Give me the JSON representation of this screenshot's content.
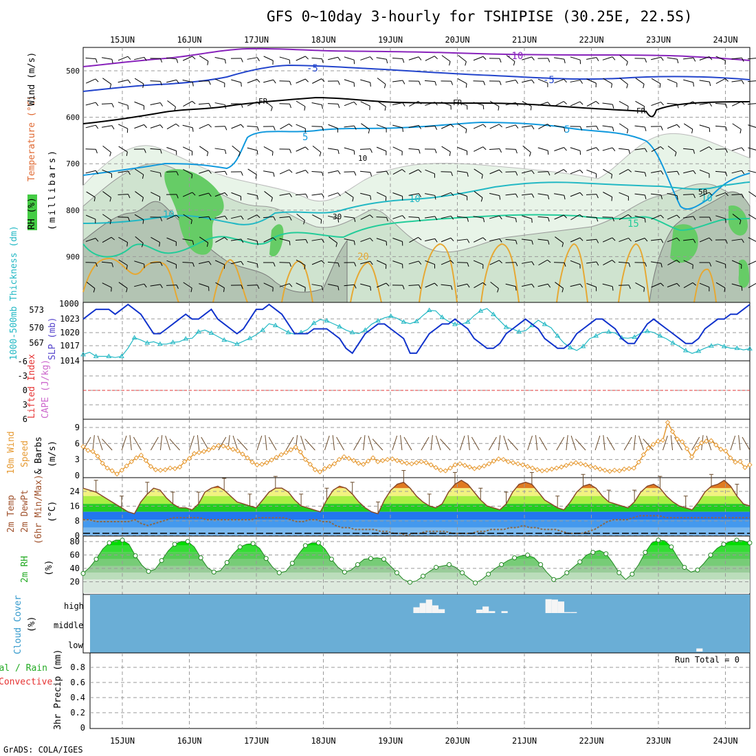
{
  "title": "GFS 0~10day 3-hourly for TSHIPISE (30.25E, 22.5S)",
  "footer": "GrADS: COLA/IGES",
  "colors": {
    "temp_line": "#3333cc",
    "thickness": "#22b8c4",
    "slp": "#1133cc",
    "wind10": "#e69a33",
    "rh_fill": "#33cc33",
    "cloud_bg": "#6aaed6",
    "lifted": "#e63333",
    "cape": "#cc66cc",
    "dewpt": "#8a6a4a",
    "freeze": "#000000"
  },
  "x_axis": {
    "labels": [
      "15JUN",
      "16JUN",
      "17JUN",
      "18JUN",
      "19JUN",
      "20JUN",
      "21JUN",
      "22JUN",
      "23JUN",
      "24JUN"
    ]
  },
  "panels": {
    "upper_air": {
      "ylabel_rh": "RH (%)",
      "ylabel_temp": "Temperature (°C)",
      "ylabel_wind": "Wind (m/s)",
      "ylabel_units": "(millibars)",
      "levels": [
        "500",
        "600",
        "700",
        "800",
        "900",
        "1000"
      ],
      "freeze_label": "FR",
      "rh_labels": [
        "10",
        "30",
        "50"
      ],
      "temp_labels": [
        "-10",
        "-5",
        "5",
        "10",
        "15",
        "20"
      ]
    },
    "slp_thickness": {
      "ylabel_left": "1000-500mb Thickness (dm)",
      "ylabel_right": "SLP (mb)",
      "thickness_ticks": [
        "573",
        "570",
        "567"
      ],
      "slp_ticks": [
        "1023",
        "1020",
        "1017",
        "1014"
      ],
      "top_label": "1000"
    },
    "stability": {
      "ylabel_left": "Lifted Index",
      "ylabel_right": "CAPE (J/kg)",
      "ticks": [
        "-6",
        "-3",
        "0",
        "3",
        "6"
      ]
    },
    "wind10m": {
      "ylabel_1": "10m Wind",
      "ylabel_2": "Speed",
      "ylabel_3": "& Barbs",
      "ylabel_units": "(m/s)",
      "ticks": [
        "9",
        "6",
        "3",
        "0"
      ]
    },
    "temp2m": {
      "ylabel_1": "2m Temp",
      "ylabel_2": "2m DewPt",
      "ylabel_3": "(6hr Min/Max)",
      "ylabel_units": "(°C)",
      "ticks": [
        "24",
        "16",
        "8",
        "0"
      ]
    },
    "rh2m": {
      "ylabel": "2m RH",
      "ylabel_units": "(%)",
      "ticks": [
        "80",
        "60",
        "40",
        "20"
      ]
    },
    "cloud": {
      "ylabel": "Cloud Cover",
      "ylabel_units": "(%)",
      "levels": [
        "high",
        "middle",
        "low"
      ]
    },
    "precip": {
      "ylabel_1": "Total / Rain",
      "ylabel_2": "Convective",
      "ylabel_units": "3hr Precip (mm)",
      "ticks": [
        "0.8",
        "0.6",
        "0.4",
        "0.2",
        "0"
      ],
      "run_total": "Run Total = 0"
    }
  },
  "chart_data": [
    {
      "type": "line",
      "name": "slp_thickness",
      "x_step_hours": 3,
      "series": [
        {
          "name": "SLP (mb)",
          "values": [
            1022,
            1023,
            1024,
            1024,
            1024,
            1023,
            1024,
            1025,
            1024,
            1023,
            1021,
            1019,
            1019,
            1020,
            1021,
            1022,
            1023,
            1022,
            1022,
            1023,
            1024,
            1022,
            1021,
            1020,
            1019,
            1020,
            1022,
            1024,
            1024,
            1025,
            1024,
            1023,
            1021,
            1019,
            1019,
            1019,
            1020,
            1020,
            1020,
            1019,
            1018,
            1016,
            1015,
            1017,
            1019,
            1020,
            1021,
            1021,
            1020,
            1019,
            1018,
            1015,
            1015,
            1017,
            1019,
            1020,
            1021,
            1021,
            1022,
            1021,
            1020,
            1018,
            1017,
            1016,
            1016,
            1017,
            1019,
            1020,
            1021,
            1022,
            1021,
            1020,
            1018,
            1017,
            1016,
            1016,
            1017,
            1019,
            1020,
            1021,
            1022,
            1022,
            1021,
            1020,
            1018,
            1017,
            1017,
            1019,
            1021,
            1022,
            1021,
            1020,
            1019,
            1018,
            1017,
            1017,
            1018,
            1020,
            1021,
            1022,
            1022,
            1023,
            1023,
            1024,
            1025
          ]
        },
        {
          "name": "Thickness (dm)",
          "values": [
            565.6,
            566.0,
            565.3,
            565.3,
            565.3,
            565.1,
            565.3,
            566.7,
            568.5,
            568.1,
            567.6,
            567.8,
            567.4,
            567.4,
            567.7,
            567.8,
            568.3,
            568.4,
            569.5,
            569.8,
            569.3,
            568.7,
            568.1,
            567.8,
            567.4,
            567.9,
            568.4,
            569.0,
            569.8,
            570.9,
            570.6,
            570.0,
            569.4,
            569.1,
            569.4,
            569.9,
            571.0,
            571.6,
            571.4,
            570.9,
            570.4,
            569.8,
            569.4,
            569.2,
            569.8,
            570.8,
            571.4,
            571.9,
            572.2,
            571.8,
            571.2,
            570.9,
            571.3,
            572.3,
            573.2,
            573.1,
            572.0,
            571.3,
            570.8,
            570.8,
            571.2,
            572.3,
            573.1,
            573.5,
            572.5,
            571.4,
            570.3,
            570.0,
            569.5,
            569.7,
            570.6,
            571.5,
            570.8,
            570.2,
            568.8,
            567.6,
            566.8,
            566.3,
            567.0,
            568.3,
            568.8,
            569.4,
            569.5,
            569.3,
            568.5,
            568.4,
            568.6,
            569.3,
            569.6,
            569.4,
            568.8,
            568.3,
            567.6,
            567.0,
            566.3,
            565.8,
            566.2,
            566.7,
            567.1,
            567.4,
            567.0,
            566.7,
            566.7,
            566.4,
            566.6
          ]
        }
      ]
    },
    {
      "type": "line",
      "name": "wind10m",
      "x_step_hours": 3,
      "series": [
        {
          "name": "10m Wind Speed (m/s)",
          "values": [
            5.4,
            4.7,
            4.5,
            3.6,
            2.3,
            1.4,
            0.9,
            0.3,
            1.0,
            1.8,
            2.6,
            3.3,
            3.8,
            2.8,
            1.7,
            1.1,
            1.0,
            1.1,
            1.4,
            1.3,
            1.6,
            2.6,
            3.2,
            4.1,
            4.3,
            4.5,
            4.8,
            5.2,
            5.6,
            5.5,
            5.2,
            4.9,
            4.6,
            4.0,
            3.3,
            2.5,
            2.0,
            2.1,
            2.4,
            2.9,
            3.4,
            3.9,
            4.3,
            4.8,
            5.3,
            4.4,
            3.0,
            2.1,
            1.1,
            0.7,
            1.3,
            1.7,
            2.2,
            3.0,
            3.5,
            3.2,
            2.8,
            2.3,
            2.1,
            2.7,
            3.3,
            2.6,
            2.8,
            3.0,
            3.1,
            2.8,
            2.5,
            2.3,
            2.2,
            2.4,
            2.6,
            2.4,
            2.0,
            1.5,
            1.0,
            0.9,
            1.4,
            2.0,
            2.2,
            1.9,
            1.6,
            1.3,
            1.5,
            1.8,
            2.2,
            2.7,
            3.1,
            3.0,
            2.6,
            2.4,
            2.2,
            2.0,
            1.7,
            1.4,
            1.1,
            0.9,
            1.0,
            1.2,
            1.4,
            1.6,
            1.9,
            2.2,
            2.4,
            2.2,
            2.0,
            1.7,
            1.5,
            1.2,
            1.0,
            0.8,
            1.0,
            0.9,
            1.2,
            1.3,
            1.4,
            2.5,
            3.9,
            5.1,
            5.8,
            6.4,
            6.6,
            9.9,
            8.2,
            6.8,
            6.3,
            5.0,
            3.5,
            5.1,
            6.1,
            6.4,
            6.5,
            5.7,
            4.9,
            4.6,
            3.3,
            2.5,
            2.6,
            1.5,
            2.0
          ]
        }
      ]
    },
    {
      "type": "area",
      "name": "temp2m",
      "x_step_hours": 3,
      "series": [
        {
          "name": "2m Temp (°C)",
          "values": [
            24,
            23,
            22,
            20,
            18,
            16,
            14,
            12,
            11,
            17,
            21,
            24,
            23,
            19,
            16,
            14,
            14,
            13,
            16,
            22,
            24,
            25,
            23,
            20,
            17,
            16,
            15,
            14,
            18,
            22,
            24,
            24,
            22,
            18,
            15,
            14,
            13,
            12,
            18,
            23,
            25,
            24,
            21,
            17,
            14,
            12,
            11,
            18,
            23,
            26,
            27,
            24,
            20,
            17,
            15,
            14,
            16,
            22,
            26,
            28,
            26,
            22,
            18,
            15,
            14,
            13,
            16,
            22,
            26,
            27,
            26,
            22,
            18,
            16,
            14,
            13,
            17,
            22,
            25,
            26,
            24,
            20,
            17,
            16,
            15,
            14,
            17,
            22,
            25,
            26,
            24,
            20,
            17,
            15,
            14,
            13,
            17,
            22,
            25,
            26,
            28,
            25,
            20,
            16,
            15
          ]
        },
        {
          "name": "2m DewPt (°C)",
          "values": [
            8,
            8,
            7,
            7,
            7,
            7,
            7,
            7,
            8,
            6,
            5,
            6,
            7,
            8,
            9,
            9,
            9,
            9,
            9,
            8,
            8,
            8,
            8,
            8,
            8,
            8,
            8,
            9,
            9,
            9,
            9,
            9,
            8,
            7,
            7,
            8,
            8,
            7,
            7,
            5,
            4,
            4,
            3,
            3,
            3,
            3,
            2,
            2,
            1,
            1,
            0,
            1,
            1,
            2,
            2,
            2,
            2,
            1,
            1,
            1,
            1,
            2,
            2,
            3,
            3,
            3,
            4,
            4,
            5,
            4,
            4,
            3,
            3,
            3,
            2,
            1,
            1,
            1,
            2,
            3,
            5,
            7,
            8,
            8,
            8,
            9,
            10,
            10,
            10,
            10,
            9,
            9,
            9,
            9,
            9,
            9,
            9,
            9,
            9,
            9,
            9,
            9,
            9,
            9
          ]
        }
      ]
    },
    {
      "type": "area",
      "name": "rh2m",
      "x_step_hours": 3,
      "series": [
        {
          "name": "2m RH (%)",
          "values": [
            29,
            38,
            50,
            65,
            74,
            78,
            78,
            72,
            55,
            41,
            32,
            35,
            48,
            62,
            72,
            76,
            76,
            68,
            52,
            38,
            31,
            33,
            45,
            58,
            68,
            72,
            73,
            66,
            51,
            38,
            30,
            32,
            44,
            58,
            70,
            74,
            74,
            65,
            50,
            38,
            31,
            34,
            42,
            50,
            51,
            52,
            50,
            40,
            30,
            20,
            16,
            18,
            25,
            32,
            38,
            40,
            42,
            38,
            30,
            22,
            15,
            20,
            28,
            36,
            42,
            48,
            52,
            55,
            56,
            52,
            42,
            30,
            20,
            22,
            30,
            38,
            46,
            56,
            60,
            63,
            58,
            45,
            30,
            20,
            28,
            42,
            60,
            74,
            78,
            77,
            68,
            52,
            38,
            31,
            34,
            44,
            56,
            66,
            72,
            76,
            78,
            77,
            74
          ]
        }
      ]
    },
    {
      "type": "bar",
      "name": "cloud",
      "x_step_hours": 3,
      "series": [
        {
          "name": "high",
          "values": [
            0,
            0,
            0,
            0,
            0,
            0,
            0,
            0,
            0,
            0,
            0,
            0,
            0,
            0,
            0,
            0,
            0,
            0,
            0,
            0,
            0,
            0,
            0,
            0,
            0,
            0,
            0,
            0,
            0,
            0,
            0,
            0,
            0,
            0,
            0,
            0,
            0,
            0,
            0,
            0,
            0,
            0,
            0,
            0,
            0,
            0,
            0,
            0,
            0,
            0,
            0,
            0,
            0,
            30,
            52,
            70,
            40,
            20,
            0,
            0,
            0,
            0,
            0,
            18,
            34,
            10,
            0,
            10,
            0,
            0,
            0,
            0,
            0,
            0,
            72,
            70,
            60,
            5,
            5,
            0,
            0,
            0,
            0,
            0,
            0,
            0,
            0,
            0,
            0,
            0,
            0,
            0,
            0,
            0,
            0,
            0,
            0,
            0,
            0,
            0,
            0,
            0,
            0,
            0,
            0,
            0,
            0
          ]
        },
        {
          "name": "low",
          "values": [
            0,
            0,
            0,
            0,
            0,
            0,
            0,
            0,
            0,
            0,
            0,
            0,
            0,
            0,
            0,
            0,
            0,
            0,
            0,
            0,
            0,
            0,
            0,
            0,
            0,
            0,
            0,
            0,
            0,
            0,
            0,
            0,
            0,
            0,
            0,
            0,
            0,
            0,
            0,
            0,
            0,
            0,
            0,
            0,
            0,
            0,
            0,
            0,
            0,
            0,
            0,
            0,
            0,
            0,
            0,
            0,
            0,
            0,
            0,
            0,
            0,
            0,
            0,
            0,
            0,
            0,
            0,
            0,
            0,
            0,
            0,
            0,
            0,
            0,
            0,
            0,
            0,
            0,
            0,
            0,
            0,
            0,
            0,
            0,
            0,
            0,
            0,
            0,
            0,
            0,
            0,
            0,
            0,
            0,
            0,
            0,
            0,
            0,
            16,
            0,
            0,
            0,
            0,
            0,
            0,
            0,
            0,
            0
          ]
        }
      ]
    },
    {
      "type": "bar",
      "name": "precip",
      "series": [
        {
          "name": "3hr Precip (mm)",
          "values": []
        }
      ],
      "ylim": [
        0,
        1
      ]
    }
  ]
}
